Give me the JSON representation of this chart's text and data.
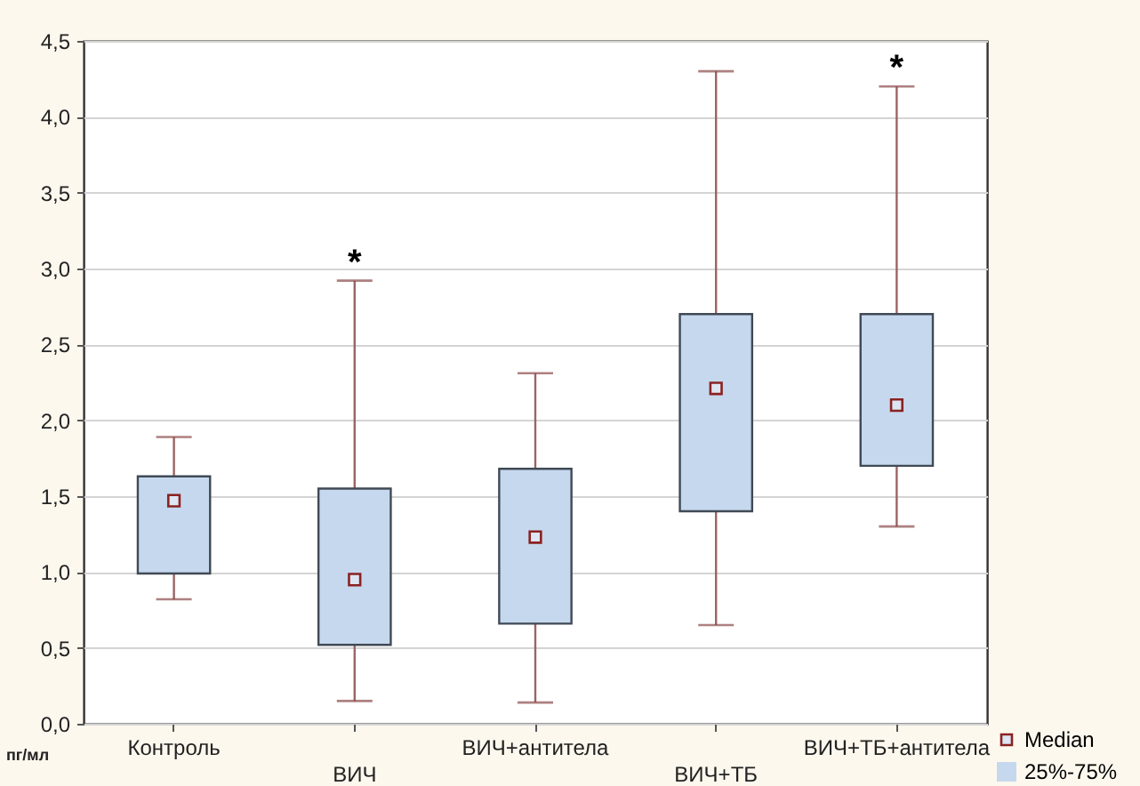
{
  "chart_data": {
    "type": "box",
    "ylabel": "пг/мл",
    "categories": [
      "Контроль",
      "ВИЧ",
      "ВИЧ+антитела",
      "ВИЧ+ТБ",
      "ВИЧ+ТБ+антитела"
    ],
    "ylim": [
      0,
      4.5
    ],
    "yticks": [
      {
        "value": 0,
        "label": "0,0"
      },
      {
        "value": 0.5,
        "label": "0,5"
      },
      {
        "value": 1,
        "label": "1,0"
      },
      {
        "value": 1.5,
        "label": "1,5"
      },
      {
        "value": 2,
        "label": "2,0"
      },
      {
        "value": 2.5,
        "label": "2,5"
      },
      {
        "value": 3,
        "label": "3,0"
      },
      {
        "value": 3.5,
        "label": "3,5"
      },
      {
        "value": 4,
        "label": "4,0"
      },
      {
        "value": 4.5,
        "label": "4,5"
      }
    ],
    "grid": "y",
    "legend": "bottom right",
    "series": [
      {
        "name": "25%-75%",
        "color": "#c6d8ee",
        "boxes": [
          {
            "low": 0.82,
            "q1": 0.99,
            "median": 1.47,
            "q3": 1.63,
            "high": 1.89
          },
          {
            "low": 0.15,
            "q1": 0.52,
            "median": 0.95,
            "q3": 1.55,
            "high": 2.92
          },
          {
            "low": 0.14,
            "q1": 0.66,
            "median": 1.23,
            "q3": 1.68,
            "high": 2.31
          },
          {
            "low": 0.65,
            "q1": 1.4,
            "median": 2.21,
            "q3": 2.7,
            "high": 4.3
          },
          {
            "low": 1.3,
            "q1": 1.7,
            "median": 2.1,
            "q3": 2.7,
            "high": 4.2
          }
        ]
      }
    ],
    "annotations": [
      {
        "text": "*",
        "x": "ВИЧ",
        "y": 2.92
      },
      {
        "text": "*",
        "x": "ВИЧ+ТБ+антитела",
        "y": 4.2
      },
      "Median"
    ]
  }
}
